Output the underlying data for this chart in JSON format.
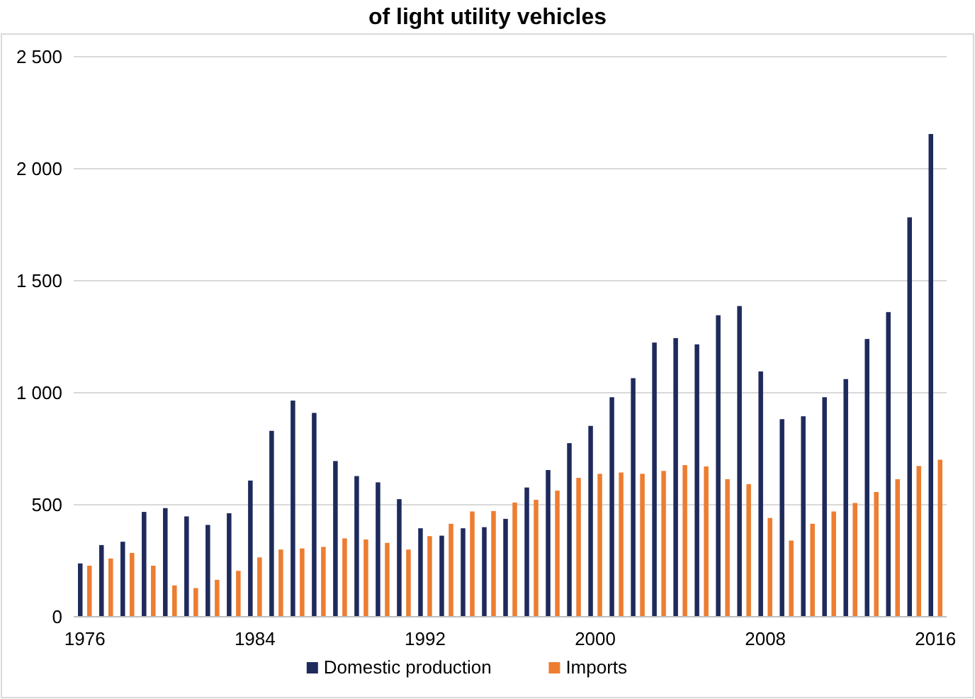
{
  "chart_data": {
    "type": "bar",
    "title": "of light utility vehicles",
    "categories": [
      "1976",
      null,
      null,
      null,
      null,
      null,
      null,
      null,
      "1984",
      null,
      null,
      null,
      null,
      null,
      null,
      null,
      "1992",
      null,
      null,
      null,
      null,
      null,
      null,
      null,
      "2000",
      null,
      null,
      null,
      null,
      null,
      null,
      null,
      "2008",
      null,
      null,
      null,
      null,
      null,
      null,
      null,
      "2016"
    ],
    "series": [
      {
        "name": "Domestic production",
        "color": "#1f2a5c",
        "values": [
          238,
          320,
          335,
          468,
          485,
          448,
          410,
          462,
          608,
          830,
          965,
          910,
          695,
          628,
          600,
          525,
          395,
          362,
          395,
          400,
          437,
          577,
          655,
          775,
          852,
          980,
          1065,
          1224,
          1244,
          1216,
          1346,
          1387,
          1095,
          882,
          895,
          980,
          1061,
          1240,
          1360,
          1783,
          2155
        ]
      },
      {
        "name": "Imports",
        "color": "#ed7d31",
        "values": [
          228,
          260,
          285,
          228,
          140,
          128,
          165,
          205,
          265,
          300,
          305,
          312,
          350,
          345,
          330,
          300,
          360,
          415,
          470,
          472,
          510,
          522,
          563,
          620,
          638,
          644,
          638,
          651,
          677,
          671,
          614,
          592,
          441,
          340,
          415,
          470,
          508,
          557,
          614,
          673,
          701
        ]
      }
    ],
    "ylim": [
      0,
      2500
    ],
    "yticks": [
      {
        "value": 0,
        "label": "0"
      },
      {
        "value": 500,
        "label": "500"
      },
      {
        "value": 1000,
        "label": "1 000"
      },
      {
        "value": 1500,
        "label": "1 500"
      },
      {
        "value": 2000,
        "label": "2 000"
      },
      {
        "value": 2500,
        "label": "2 500"
      }
    ],
    "grid": "y",
    "legend": "bottom"
  }
}
